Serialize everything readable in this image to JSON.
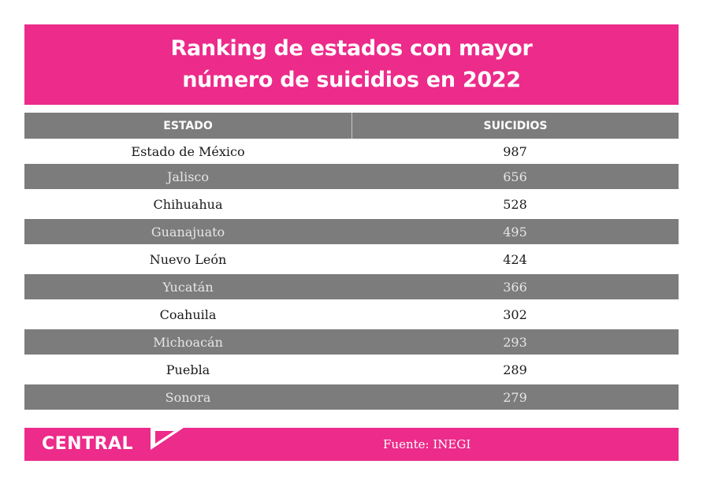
{
  "chart_data": {
    "type": "table",
    "title_lines": [
      "Ranking de estados con mayor",
      "número de suicidios en 2022"
    ],
    "columns": [
      "ESTADO",
      "SUICIDIOS"
    ],
    "rows": [
      {
        "estado": "Estado de México",
        "suicidios": "987"
      },
      {
        "estado": "Jalisco",
        "suicidios": "656"
      },
      {
        "estado": "Chihuahua",
        "suicidios": "528"
      },
      {
        "estado": "Guanajuato",
        "suicidios": "495"
      },
      {
        "estado": "Nuevo León",
        "suicidios": "424"
      },
      {
        "estado": "Yucatán",
        "suicidios": "366"
      },
      {
        "estado": "Coahuila",
        "suicidios": "302"
      },
      {
        "estado": "Michoacán",
        "suicidios": "293"
      },
      {
        "estado": "Puebla",
        "suicidios": "289"
      },
      {
        "estado": "Sonora",
        "suicidios": "279"
      }
    ]
  },
  "footer": {
    "logo_text": "CENTRAL",
    "source": "Fuente: INEGI"
  },
  "colors": {
    "brand_pink": "#ec2b8a",
    "row_gray": "#7c7c7c"
  }
}
